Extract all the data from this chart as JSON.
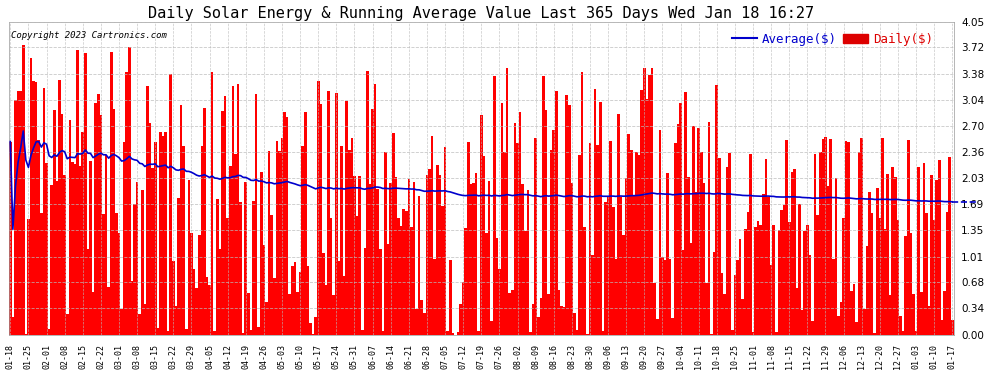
{
  "title": "Daily Solar Energy & Running Average Value Last 365 Days Wed Jan 18 16:27",
  "copyright_text": "Copyright 2023 Cartronics.com",
  "ylabel_values": [
    0.0,
    0.34,
    0.68,
    1.01,
    1.35,
    1.69,
    2.03,
    2.36,
    2.7,
    3.04,
    3.38,
    3.72,
    4.05
  ],
  "ylim": [
    0.0,
    4.05
  ],
  "bar_color": "#ff0000",
  "avg_color": "#0000cc",
  "daily_color": "#dd0000",
  "background_color": "#ffffff",
  "grid_color": "#bbbbbb",
  "title_fontsize": 11,
  "legend_fontsize": 9,
  "avg_label": "Average($)",
  "daily_label": "Daily($)",
  "n_days": 365,
  "tick_interval": 7
}
